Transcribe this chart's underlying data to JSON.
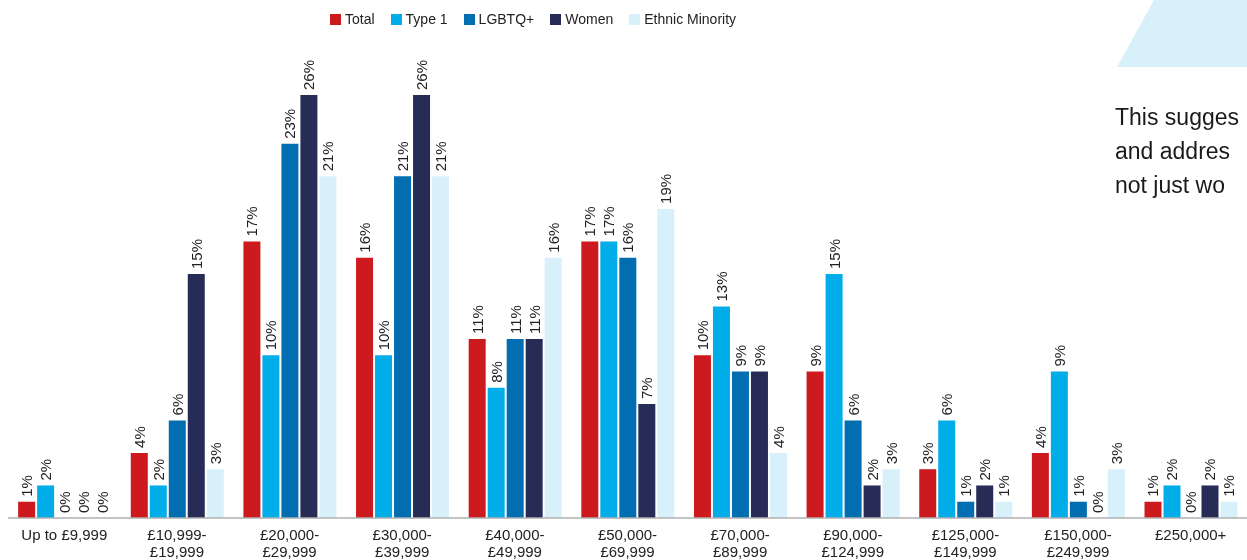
{
  "chart_data": {
    "type": "bar",
    "categories": [
      "Up to £9,999",
      "£10,999-£19,999",
      "£20,000-£29,999",
      "£30,000-£39,999",
      "£40,000-£49,999",
      "£50,000-£69,999",
      "£70,000-£89,999",
      "£90,000-£124,999",
      "£125,000-£149,999",
      "£150,000-£249,999",
      "£250,000+"
    ],
    "series": [
      {
        "name": "Total",
        "color": "#cc1a1f",
        "values": [
          1,
          4,
          17,
          16,
          11,
          17,
          10,
          9,
          3,
          4,
          1
        ],
        "value_labels": [
          "1%",
          "4%",
          "17%",
          "16%",
          "11%",
          "17%",
          "10%",
          "9%",
          "3%",
          "4%",
          "1%"
        ]
      },
      {
        "name": "Type 1",
        "color": "#00ade8",
        "values": [
          2,
          2,
          10,
          10,
          8,
          17,
          13,
          15,
          6,
          9,
          2
        ],
        "value_labels": [
          "2%",
          "2%",
          "10%",
          "10%",
          "8%",
          "17%",
          "13%",
          "15%",
          "6%",
          "9%",
          "2%"
        ]
      },
      {
        "name": "LGBTQ+",
        "color": "#006eb0",
        "values": [
          0,
          6,
          23,
          21,
          11,
          16,
          9,
          6,
          1,
          1,
          0
        ],
        "value_labels": [
          "0%",
          "6%",
          "23%",
          "21%",
          "11%",
          "16%",
          "9%",
          "6%",
          "1%",
          "1%",
          "0%"
        ]
      },
      {
        "name": "Women",
        "color": "#262c55",
        "values": [
          0,
          15,
          26,
          26,
          11,
          7,
          9,
          2,
          2,
          0,
          2
        ],
        "value_labels": [
          "0%",
          "15%",
          "26%",
          "26%",
          "11%",
          "7%",
          "9%",
          "2%",
          "2%",
          "0%",
          "2%"
        ]
      },
      {
        "name": "Ethnic Minority",
        "color": "#d8f0fa",
        "values": [
          0,
          3,
          21,
          21,
          16,
          19,
          4,
          3,
          1,
          3,
          1
        ],
        "value_labels": [
          "0%",
          "3%",
          "21%",
          "21%",
          "16%",
          "19%",
          "4%",
          "3%",
          "1%",
          "3%",
          "1%"
        ]
      }
    ],
    "legend": "top",
    "annotations": [
      "This sugges\nand addres\nnot just wo"
    ]
  }
}
